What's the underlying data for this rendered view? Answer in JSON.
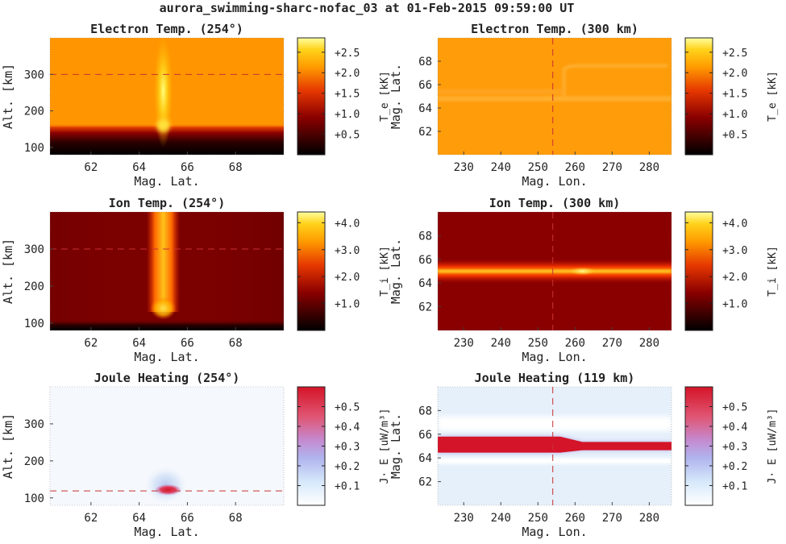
{
  "figure": {
    "title": "aurora_swimming-sharc-nofac_03 at 01-Feb-2015 09:59:00 UT"
  },
  "chart_data": [
    {
      "type": "heatmap",
      "title": "Electron Temp. (254°)",
      "xlabel": "Mag. Lat.",
      "ylabel": "Alt. [km]",
      "xlim": [
        60.3,
        70.0
      ],
      "ylim": [
        80,
        400
      ],
      "xticks": [
        62,
        64,
        66,
        68
      ],
      "yticks": [
        100,
        200,
        300
      ],
      "colormap": "hot",
      "clim": [
        0.0,
        2.85
      ],
      "colorbar": {
        "label": "T_e [kK]",
        "ticks": [
          0.5,
          1.0,
          1.5,
          2.0,
          2.5
        ],
        "tick_labels": [
          "+0.5",
          "+1.0",
          "+1.5",
          "+2.0",
          "+2.5"
        ]
      },
      "reference_line": {
        "orientation": "horizontal",
        "value": 300,
        "color": "#c83232",
        "style": "dashed"
      }
    },
    {
      "type": "heatmap",
      "title": "Electron Temp. (300 km)",
      "xlabel": "Mag. Lon.",
      "ylabel": "Mag. Lat.",
      "xlim": [
        223,
        286
      ],
      "ylim": [
        60.0,
        70.0
      ],
      "xticks": [
        230,
        240,
        250,
        260,
        270,
        280
      ],
      "yticks": [
        62,
        64,
        66,
        68
      ],
      "colormap": "hot",
      "clim": [
        0.0,
        2.85
      ],
      "colorbar": {
        "label": "T_e [kK]",
        "ticks": [
          0.5,
          1.0,
          1.5,
          2.0,
          2.5
        ],
        "tick_labels": [
          "+0.5",
          "+1.0",
          "+1.5",
          "+2.0",
          "+2.5"
        ]
      },
      "reference_line": {
        "orientation": "vertical",
        "value": 254,
        "color": "#c83232",
        "style": "dashed"
      }
    },
    {
      "type": "heatmap",
      "title": "Ion Temp. (254°)",
      "xlabel": "Mag. Lat.",
      "ylabel": "Alt. [km]",
      "xlim": [
        60.3,
        70.0
      ],
      "ylim": [
        80,
        400
      ],
      "xticks": [
        62,
        64,
        66,
        68
      ],
      "yticks": [
        100,
        200,
        300
      ],
      "colormap": "hot",
      "clim": [
        0.0,
        4.4
      ],
      "colorbar": {
        "label": "T_i [kK]",
        "ticks": [
          1.0,
          2.0,
          3.0,
          4.0
        ],
        "tick_labels": [
          "+1.0",
          "+2.0",
          "+3.0",
          "+4.0"
        ]
      },
      "reference_line": {
        "orientation": "horizontal",
        "value": 300,
        "color": "#c83232",
        "style": "dashed"
      }
    },
    {
      "type": "heatmap",
      "title": "Ion Temp. (300 km)",
      "xlabel": "Mag. Lon.",
      "ylabel": "Mag. Lat.",
      "xlim": [
        223,
        286
      ],
      "ylim": [
        60.0,
        70.0
      ],
      "xticks": [
        230,
        240,
        250,
        260,
        270,
        280
      ],
      "yticks": [
        62,
        64,
        66,
        68
      ],
      "colormap": "hot",
      "clim": [
        0.0,
        4.4
      ],
      "colorbar": {
        "label": "T_i [kK]",
        "ticks": [
          1.0,
          2.0,
          3.0,
          4.0
        ],
        "tick_labels": [
          "+1.0",
          "+2.0",
          "+3.0",
          "+4.0"
        ]
      },
      "reference_line": {
        "orientation": "vertical",
        "value": 254,
        "color": "#c83232",
        "style": "dashed"
      }
    },
    {
      "type": "heatmap",
      "title": "Joule Heating (254°)",
      "xlabel": "Mag. Lat.",
      "ylabel": "Alt. [km]",
      "xlim": [
        60.3,
        70.0
      ],
      "ylim": [
        80,
        400
      ],
      "xticks": [
        62,
        64,
        66,
        68
      ],
      "yticks": [
        100,
        200,
        300
      ],
      "colormap": "white-blue-red",
      "clim": [
        0.0,
        0.6
      ],
      "colorbar": {
        "label": "J· E [uW/m³]",
        "ticks": [
          0.1,
          0.2,
          0.3,
          0.4,
          0.5
        ],
        "tick_labels": [
          "+0.1",
          "+0.2",
          "+0.3",
          "+0.4",
          "+0.5"
        ]
      },
      "reference_line": {
        "orientation": "horizontal",
        "value": 119,
        "color": "#c83232",
        "style": "dashed"
      }
    },
    {
      "type": "heatmap",
      "title": "Joule Heating (119 km)",
      "xlabel": "Mag. Lon.",
      "ylabel": "Mag. Lat.",
      "xlim": [
        223,
        286
      ],
      "ylim": [
        60.0,
        70.0
      ],
      "xticks": [
        230,
        240,
        250,
        260,
        270,
        280
      ],
      "yticks": [
        62,
        64,
        66,
        68
      ],
      "colormap": "white-blue-red",
      "clim": [
        0.0,
        0.6
      ],
      "colorbar": {
        "label": "J· E [uW/m³]",
        "ticks": [
          0.1,
          0.2,
          0.3,
          0.4,
          0.5
        ],
        "tick_labels": [
          "+0.1",
          "+0.2",
          "+0.3",
          "+0.4",
          "+0.5"
        ]
      },
      "reference_line": {
        "orientation": "vertical",
        "value": 254,
        "color": "#c83232",
        "style": "dashed"
      }
    }
  ]
}
